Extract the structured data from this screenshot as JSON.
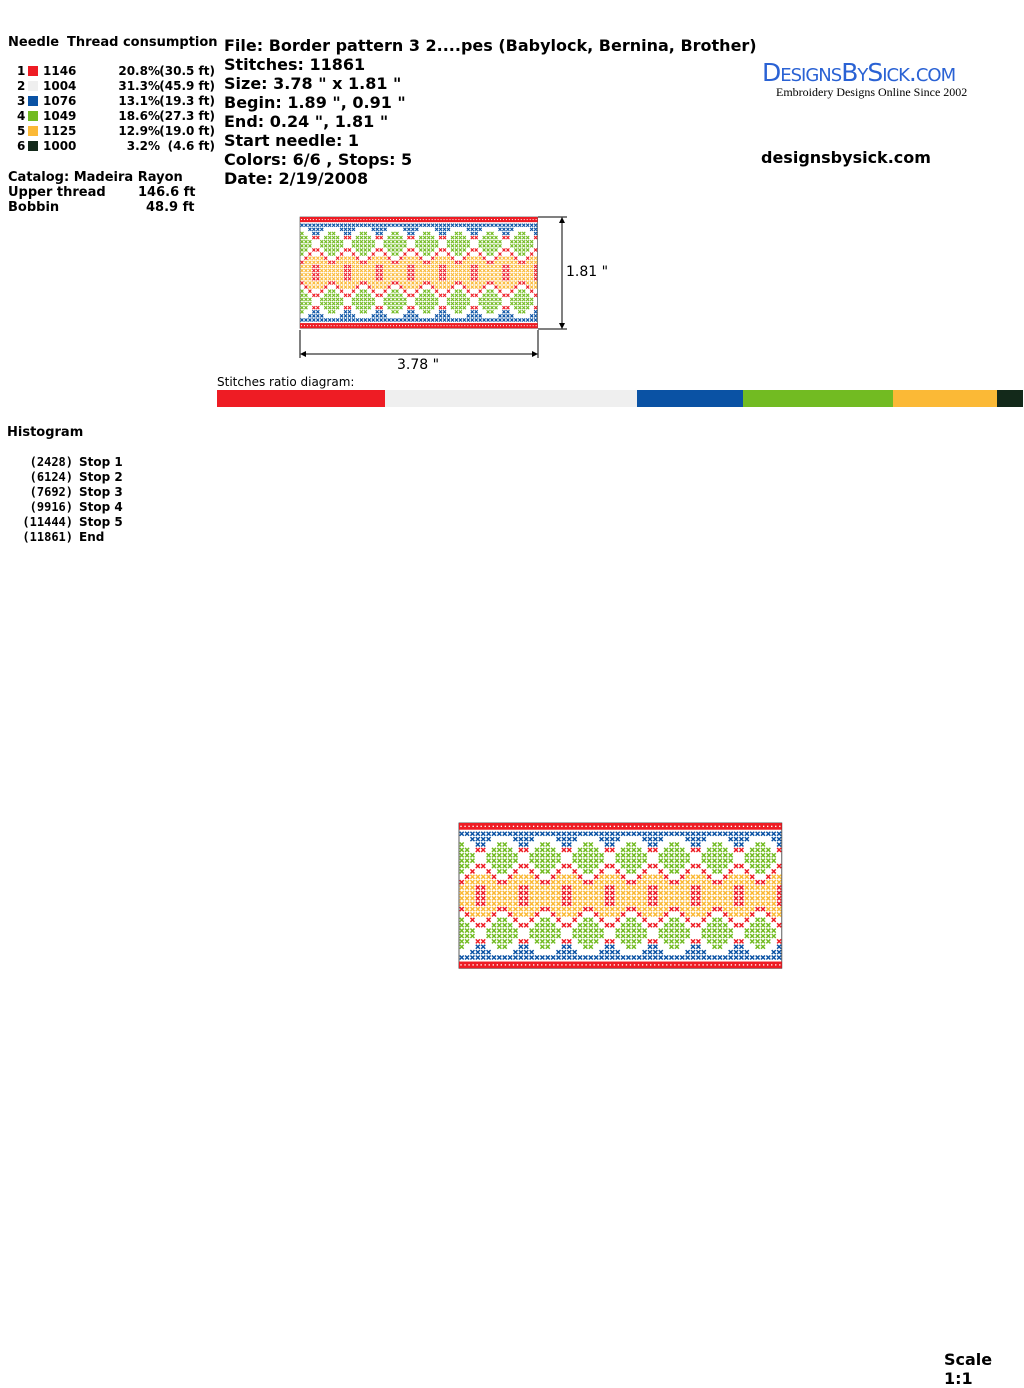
{
  "threads": {
    "header_needle": "Needle",
    "header_consumption": "Thread consumption",
    "rows": [
      {
        "needle": "1",
        "code": "1146",
        "pct": "20.8%",
        "length": "(30.5 ft)",
        "color": "#ee1c24",
        "share": 20.8
      },
      {
        "needle": "2",
        "code": "1004",
        "pct": "31.3%",
        "length": "(45.9 ft)",
        "color": "#efefef",
        "share": 31.3
      },
      {
        "needle": "3",
        "code": "1076",
        "pct": "13.1%",
        "length": "(19.3 ft)",
        "color": "#0a52a4",
        "share": 13.1
      },
      {
        "needle": "4",
        "code": "1049",
        "pct": "18.6%",
        "length": "(27.3 ft)",
        "color": "#72bb22",
        "share": 18.6
      },
      {
        "needle": "5",
        "code": "1125",
        "pct": "12.9%",
        "length": "(19.0 ft)",
        "color": "#fbb936",
        "share": 12.9
      },
      {
        "needle": "6",
        "code": "1000",
        "pct": "3.2%",
        "length": "(4.6 ft)",
        "color": "#13291a",
        "share": 3.2
      }
    ],
    "catalog": "Catalog: Madeira Rayon",
    "upper_label": "Upper thread",
    "upper_value": "146.6 ft",
    "bobbin_label": "Bobbin",
    "bobbin_value": "48.9 ft"
  },
  "info": {
    "file": "File: Border pattern 3 2....pes  (Babylock, Bernina, Brother)",
    "stitches": "Stitches: 11861",
    "size": "Size: 3.78 \" x 1.81 \"",
    "begin": "Begin: 1.89 \", 0.91 \"",
    "end": "End: 0.24 \", 1.81 \"",
    "start_needle": "Start needle: 1",
    "colors_stops": "Colors: 6/6 , Stops: 5",
    "date": "Date: 2/19/2008"
  },
  "logo": {
    "title": "DesignsBySick.com",
    "tagline": "Embroidery Designs Online Since 2002"
  },
  "site": "designsbysick.com",
  "preview": {
    "height_label": "1.81 \"",
    "width_label": "3.78 \""
  },
  "ratio_label": "Stitches ratio diagram:",
  "histogram": {
    "title": "Histogram",
    "rows": [
      {
        "count": "(2428)",
        "label": "Stop 1"
      },
      {
        "count": "(6124)",
        "label": "Stop 2"
      },
      {
        "count": "(7692)",
        "label": "Stop 3"
      },
      {
        "count": "(9916)",
        "label": "Stop 4"
      },
      {
        "count": "(11444)",
        "label": "Stop 5"
      },
      {
        "count": "(11861)",
        "label": "End"
      }
    ]
  },
  "scale": "Scale 1:1"
}
